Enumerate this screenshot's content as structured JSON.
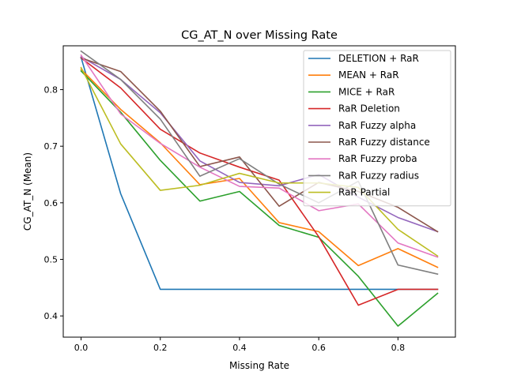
{
  "chart_data": {
    "type": "line",
    "title": "CG_AT_N over Missing Rate",
    "xlabel": "Missing Rate",
    "ylabel": "CG_AT_N (Mean)",
    "xlim": [
      -0.045,
      0.945
    ],
    "ylim": [
      0.3625,
      0.8775
    ],
    "xticks": [
      0.0,
      0.2,
      0.4,
      0.6,
      0.8
    ],
    "xtick_labels": [
      "0.0",
      "0.2",
      "0.4",
      "0.6",
      "0.8"
    ],
    "yticks": [
      0.4,
      0.5,
      0.6,
      0.7,
      0.8
    ],
    "ytick_labels": [
      "0.4",
      "0.5",
      "0.6",
      "0.7",
      "0.8"
    ],
    "grid": false,
    "legend_position": "top-right",
    "x": [
      0.0,
      0.1,
      0.2,
      0.3,
      0.4,
      0.5,
      0.6,
      0.7,
      0.8,
      0.9
    ],
    "series": [
      {
        "name": "DELETION + RaR",
        "color": "#1f77b4",
        "values": [
          0.857,
          0.616,
          0.447,
          0.447,
          0.447,
          0.447,
          0.447,
          0.447,
          0.447,
          0.447
        ]
      },
      {
        "name": "MEAN + RaR",
        "color": "#ff7f0e",
        "values": [
          0.836,
          0.765,
          0.706,
          0.632,
          0.643,
          0.565,
          0.549,
          0.489,
          0.519,
          0.486
        ]
      },
      {
        "name": "MICE + RaR",
        "color": "#2ca02c",
        "values": [
          0.833,
          0.76,
          0.675,
          0.603,
          0.62,
          0.56,
          0.539,
          0.47,
          0.382,
          0.44
        ]
      },
      {
        "name": "RaR Deletion",
        "color": "#d62728",
        "values": [
          0.856,
          0.803,
          0.73,
          0.688,
          0.663,
          0.64,
          0.54,
          0.419,
          0.447,
          0.447
        ]
      },
      {
        "name": "RaR Fuzzy alpha",
        "color": "#9467bd",
        "values": [
          0.858,
          0.818,
          0.759,
          0.674,
          0.636,
          0.63,
          0.65,
          0.61,
          0.574,
          0.549
        ]
      },
      {
        "name": "RaR Fuzzy distance",
        "color": "#8c564b",
        "values": [
          0.856,
          0.832,
          0.762,
          0.664,
          0.681,
          0.594,
          0.636,
          0.62,
          0.592,
          0.549
        ]
      },
      {
        "name": "RaR Fuzzy proba",
        "color": "#e377c2",
        "values": [
          0.861,
          0.757,
          0.705,
          0.663,
          0.629,
          0.626,
          0.586,
          0.598,
          0.529,
          0.504
        ]
      },
      {
        "name": "RaR Fuzzy radius",
        "color": "#7f7f7f",
        "values": [
          0.868,
          0.818,
          0.748,
          0.647,
          0.678,
          0.633,
          0.6,
          0.638,
          0.49,
          0.474
        ]
      },
      {
        "name": "RaR Partial",
        "color": "#bcbd22",
        "values": [
          0.839,
          0.704,
          0.622,
          0.631,
          0.652,
          0.635,
          0.635,
          0.627,
          0.553,
          0.506
        ]
      }
    ]
  }
}
